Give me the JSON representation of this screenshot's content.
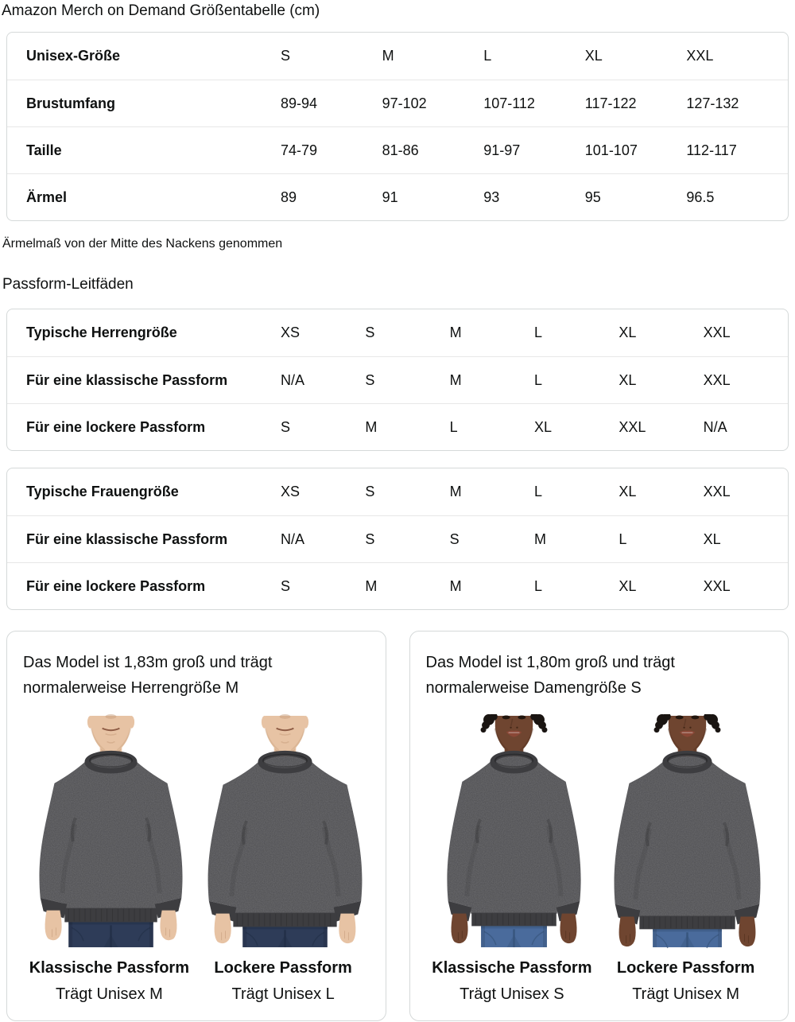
{
  "page_title": "Amazon Merch on Demand Größentabelle (cm)",
  "unisex_size_table": {
    "rows": [
      {
        "label": "Unisex-Größe",
        "values": [
          "S",
          "M",
          "L",
          "XL",
          "XXL"
        ]
      },
      {
        "label": "Brustumfang",
        "values": [
          "89-94",
          "97-102",
          "107-112",
          "117-122",
          "127-132"
        ]
      },
      {
        "label": "Taille",
        "values": [
          "74-79",
          "81-86",
          "91-97",
          "101-107",
          "112-117"
        ]
      },
      {
        "label": "Ärmel",
        "values": [
          "89",
          "91",
          "93",
          "95",
          "96.5"
        ]
      }
    ]
  },
  "sleeve_note": "Ärmelmaß von der Mitte des Nackens genommen",
  "fit_guides_heading": "Passform-Leitfäden",
  "mens_fit_table": {
    "rows": [
      {
        "label": "Typische Herrengröße",
        "values": [
          "XS",
          "S",
          "M",
          "L",
          "XL",
          "XXL"
        ]
      },
      {
        "label": "Für eine klassische Passform",
        "values": [
          "N/A",
          "S",
          "M",
          "L",
          "XL",
          "XXL"
        ]
      },
      {
        "label": "Für eine lockere Passform",
        "values": [
          "S",
          "M",
          "L",
          "XL",
          "XXL",
          "N/A"
        ]
      }
    ]
  },
  "womens_fit_table": {
    "rows": [
      {
        "label": "Typische Frauengröße",
        "values": [
          "XS",
          "S",
          "M",
          "L",
          "XL",
          "XXL"
        ]
      },
      {
        "label": "Für eine klassische Passform",
        "values": [
          "N/A",
          "S",
          "S",
          "M",
          "L",
          "XL"
        ]
      },
      {
        "label": "Für eine lockere Passform",
        "values": [
          "S",
          "M",
          "M",
          "L",
          "XL",
          "XXL"
        ]
      }
    ]
  },
  "model_cards": [
    {
      "description": "Das Model ist 1,83m groß und trägt normalerweise Herrengröße M",
      "figures": [
        {
          "model": "male-classic",
          "fit_label": "Klassische Passform",
          "size_label": "Trägt Unisex M"
        },
        {
          "model": "male-loose",
          "fit_label": "Lockere Passform",
          "size_label": "Trägt Unisex L"
        }
      ]
    },
    {
      "description": "Das Model ist 1,80m groß und trägt normalerweise Damengröße S",
      "figures": [
        {
          "model": "female-classic",
          "fit_label": "Klassische Passform",
          "size_label": "Trägt Unisex S"
        },
        {
          "model": "female-loose",
          "fit_label": "Lockere Passform",
          "size_label": "Trägt Unisex M"
        }
      ]
    }
  ],
  "colors": {
    "text": "#0f1111",
    "table_border": "#d5d9d9",
    "row_divider": "#e7e7e7",
    "sweatshirt": "#4c4c4f",
    "sweatshirt_trim": "#3d3d40",
    "jeans_dark_wash": "#2e3c58",
    "jeans_light_wash": "#4a6b9c",
    "skin_light": "#e7c3a4",
    "skin_deep": "#6f4530",
    "hair_dark": "#1a1512"
  }
}
